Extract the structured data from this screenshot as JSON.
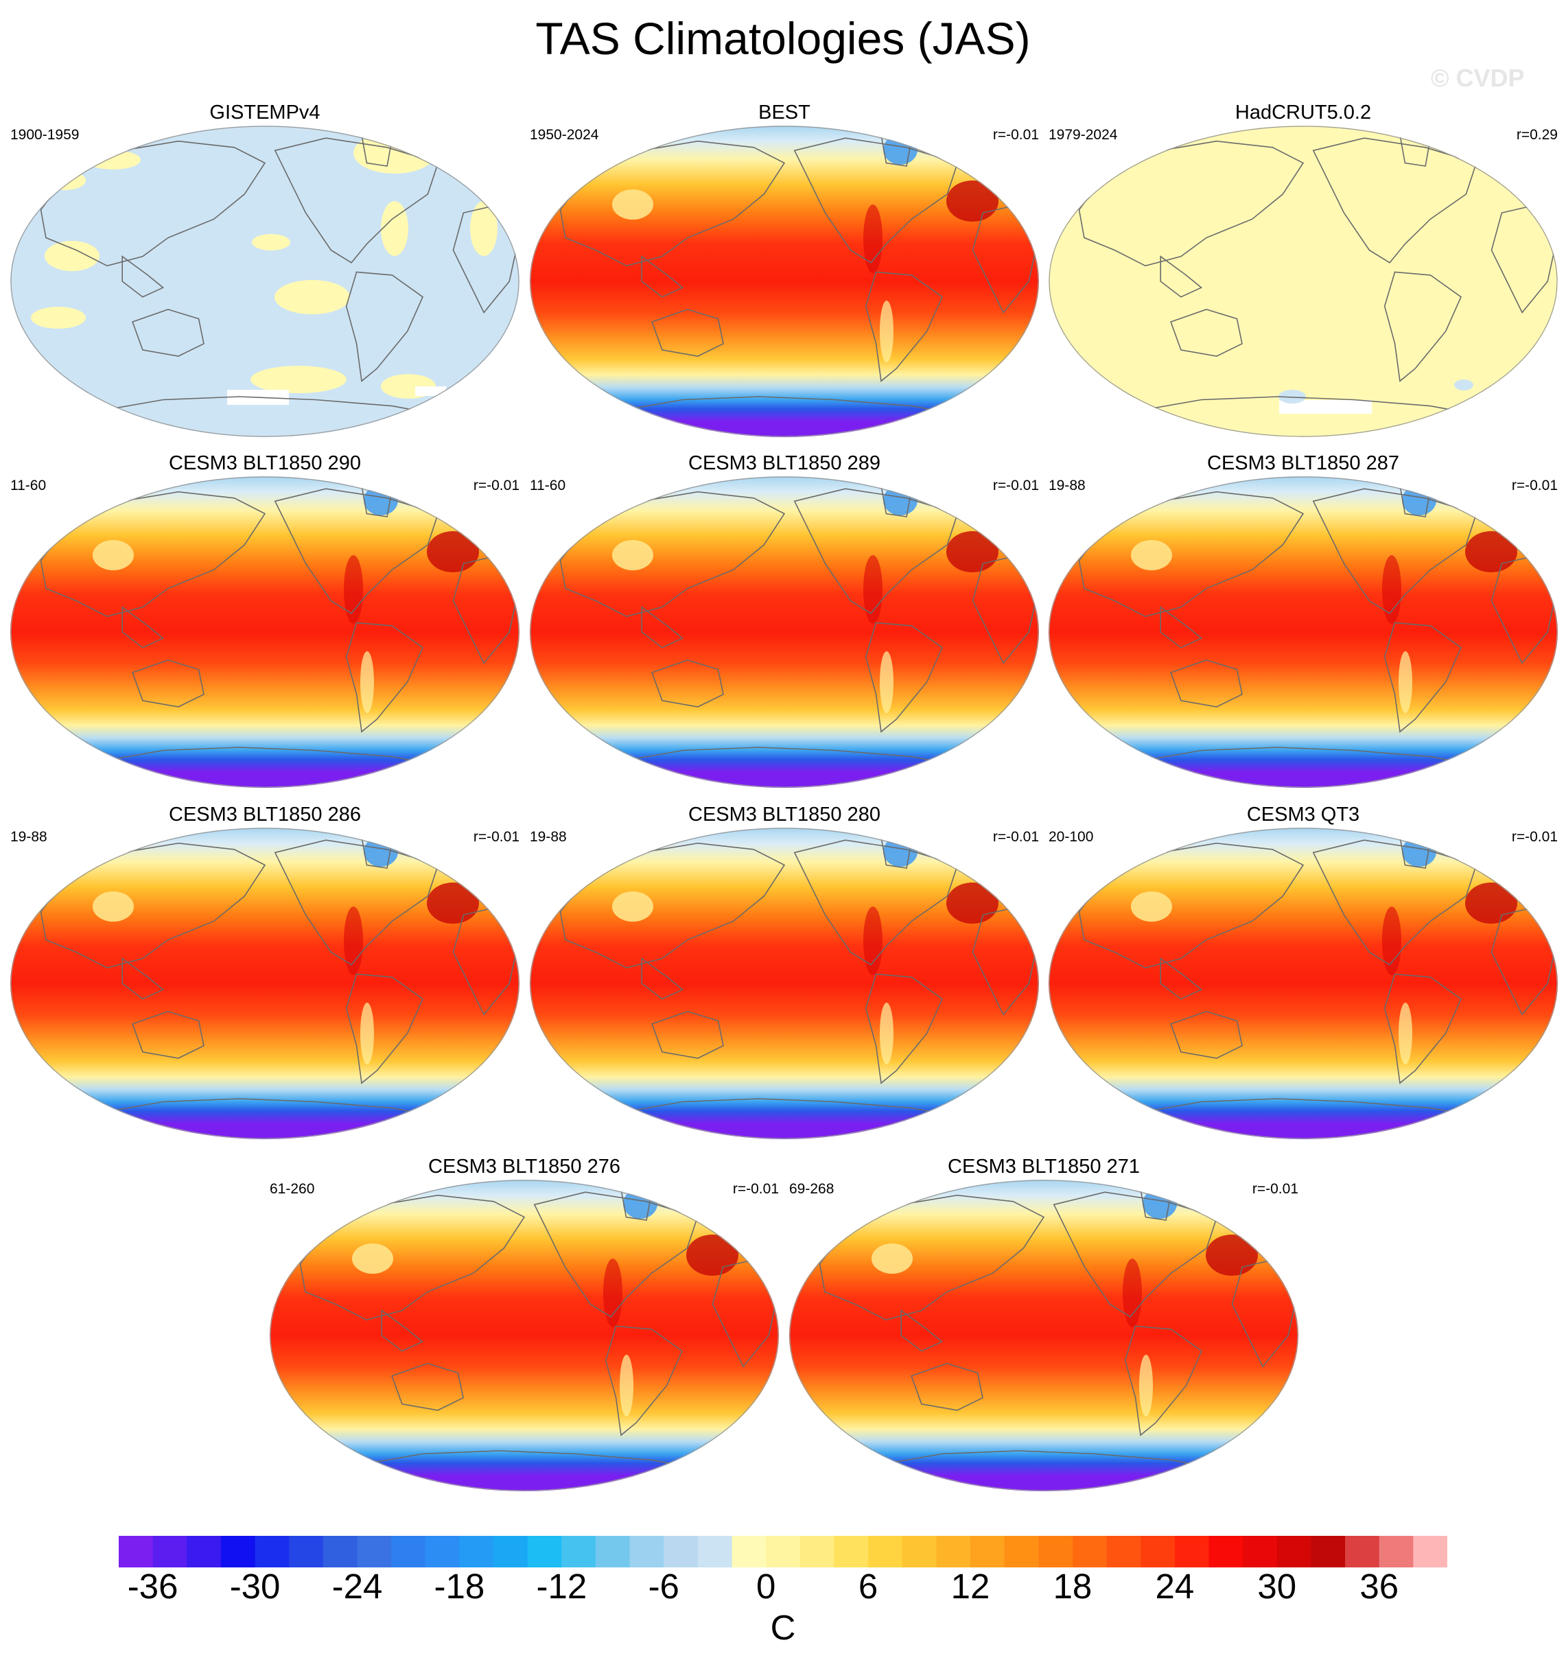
{
  "title": "TAS Climatologies (JAS)",
  "watermark": "© CVDP",
  "panels": [
    {
      "title": "GISTEMPv4",
      "period": "1900-1959",
      "corr": "",
      "style": "gistemp"
    },
    {
      "title": "BEST",
      "period": "1950-2024",
      "corr": "r=-0.01",
      "style": "full"
    },
    {
      "title": "HadCRUT5.0.2",
      "period": "1979-2024",
      "corr": "r=0.29",
      "style": "hadcrut"
    },
    {
      "title": "CESM3 BLT1850 290",
      "period": "11-60",
      "corr": "r=-0.01",
      "style": "full"
    },
    {
      "title": "CESM3 BLT1850 289",
      "period": "11-60",
      "corr": "r=-0.01",
      "style": "full"
    },
    {
      "title": "CESM3 BLT1850 287",
      "period": "19-88",
      "corr": "r=-0.01",
      "style": "full"
    },
    {
      "title": "CESM3 BLT1850 286",
      "period": "19-88",
      "corr": "r=-0.01",
      "style": "full"
    },
    {
      "title": "CESM3 BLT1850 280",
      "period": "19-88",
      "corr": "r=-0.01",
      "style": "full"
    },
    {
      "title": "CESM3 QT3",
      "period": "20-100",
      "corr": "r=-0.01",
      "style": "full"
    },
    {
      "title": "CESM3 BLT1850 276",
      "period": "61-260",
      "corr": "r=-0.01",
      "style": "full"
    },
    {
      "title": "CESM3 BLT1850 271",
      "period": "69-268",
      "corr": "r=-0.01",
      "style": "full"
    }
  ],
  "colorbar": {
    "unit": "C",
    "tick_labels": [
      "-36",
      "-30",
      "-24",
      "-18",
      "-12",
      "-6",
      "0",
      "6",
      "12",
      "18",
      "24",
      "30",
      "36"
    ],
    "colors": [
      "#7b1ff0",
      "#5a1ef0",
      "#3a1af0",
      "#1010f0",
      "#1a2ef0",
      "#2446e6",
      "#3060e0",
      "#3a72e4",
      "#2e80f0",
      "#2c8ef5",
      "#249cf5",
      "#1aa8f5",
      "#1cbcf5",
      "#46c2f0",
      "#74c8ee",
      "#9cd2ef",
      "#bad9f0",
      "#cbe3f3",
      "#fffbb6",
      "#fff4a0",
      "#ffec82",
      "#ffe15e",
      "#ffd440",
      "#ffc432",
      "#ffb428",
      "#ffa21e",
      "#ff9014",
      "#ff7e10",
      "#ff6a10",
      "#ff5410",
      "#ff3e0e",
      "#ff240a",
      "#fa0a06",
      "#e80808",
      "#d40606",
      "#c00808",
      "#dc4040",
      "#ee7a7a",
      "#ffb6b6"
    ]
  }
}
